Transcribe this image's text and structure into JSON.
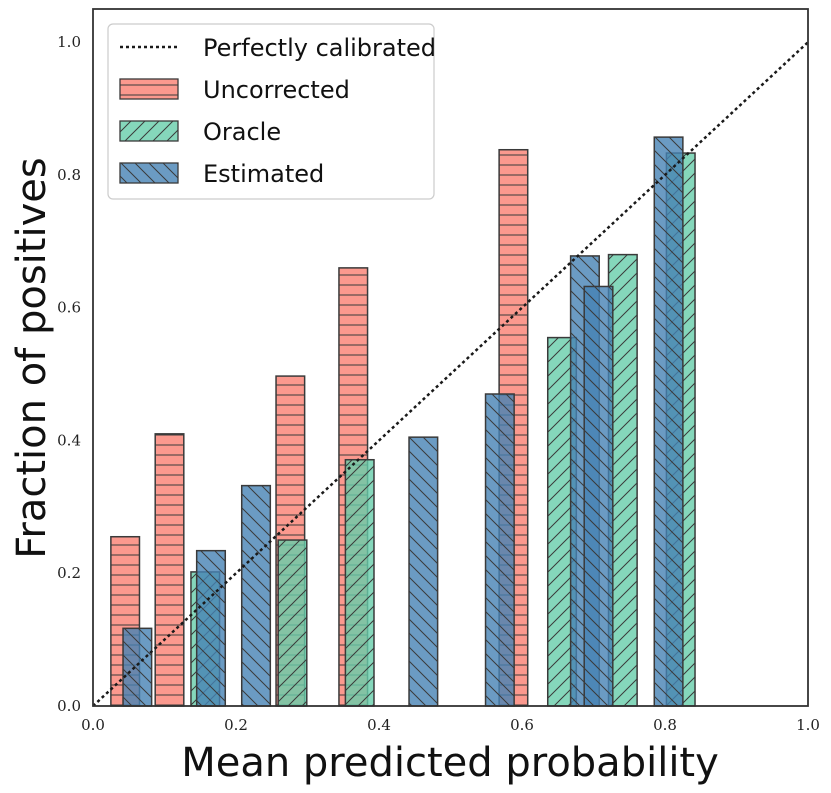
{
  "chart_data": {
    "type": "bar",
    "title": "",
    "xlabel": "Mean predicted probability",
    "ylabel": "Fraction of positives",
    "xlim": [
      0.0,
      1.0
    ],
    "ylim": [
      0.0,
      1.05
    ],
    "xticks": [
      "0.0",
      "0.2",
      "0.4",
      "0.6",
      "0.8",
      "1.0"
    ],
    "yticks": [
      "0.0",
      "0.2",
      "0.4",
      "0.6",
      "0.8",
      "1.0"
    ],
    "grid": false,
    "legend_position": "top-left",
    "reference_line": {
      "name": "Perfectly calibrated",
      "x": [
        0.0,
        1.0
      ],
      "y": [
        0.0,
        1.0
      ],
      "style": "dotted"
    },
    "series": [
      {
        "name": "Uncorrected",
        "color": "#fa8072",
        "hatch": "horizontal",
        "bars": [
          {
            "x": 0.045,
            "width": 0.04,
            "value": 0.255
          },
          {
            "x": 0.107,
            "width": 0.04,
            "value": 0.41
          },
          {
            "x": 0.276,
            "width": 0.04,
            "value": 0.497
          },
          {
            "x": 0.364,
            "width": 0.04,
            "value": 0.66
          },
          {
            "x": 0.588,
            "width": 0.04,
            "value": 0.838
          }
        ]
      },
      {
        "name": "Oracle",
        "color": "#66cdaa",
        "hatch": "forward-diagonal",
        "bars": [
          {
            "x": 0.157,
            "width": 0.04,
            "value": 0.202
          },
          {
            "x": 0.279,
            "width": 0.04,
            "value": 0.25
          },
          {
            "x": 0.373,
            "width": 0.04,
            "value": 0.371
          },
          {
            "x": 0.656,
            "width": 0.04,
            "value": 0.555
          },
          {
            "x": 0.741,
            "width": 0.04,
            "value": 0.68
          },
          {
            "x": 0.822,
            "width": 0.04,
            "value": 0.833
          }
        ]
      },
      {
        "name": "Estimated",
        "color": "#4682b4",
        "hatch": "back-diagonal",
        "bars": [
          {
            "x": 0.062,
            "width": 0.04,
            "value": 0.117
          },
          {
            "x": 0.165,
            "width": 0.04,
            "value": 0.234
          },
          {
            "x": 0.228,
            "width": 0.04,
            "value": 0.332
          },
          {
            "x": 0.462,
            "width": 0.04,
            "value": 0.405
          },
          {
            "x": 0.569,
            "width": 0.04,
            "value": 0.47
          },
          {
            "x": 0.688,
            "width": 0.04,
            "value": 0.678
          },
          {
            "x": 0.707,
            "width": 0.04,
            "value": 0.632
          },
          {
            "x": 0.805,
            "width": 0.04,
            "value": 0.857
          }
        ]
      }
    ]
  }
}
